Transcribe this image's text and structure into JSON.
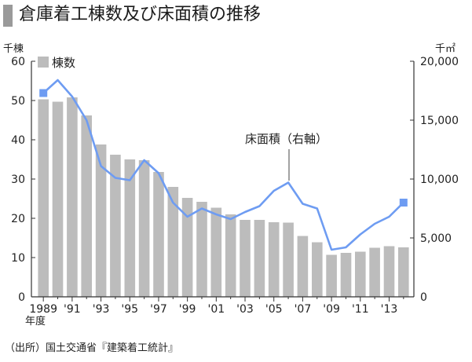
{
  "title": "倉庫着工棟数及び床面積の推移",
  "source": "（出所）国土交通省『建築着工統計』",
  "chart_data": {
    "type": "bar",
    "x_unit_label": "年度",
    "years": [
      1989,
      1990,
      1991,
      1992,
      1993,
      1994,
      1995,
      1996,
      1997,
      1998,
      1999,
      2000,
      2001,
      2002,
      2003,
      2004,
      2005,
      2006,
      2007,
      2008,
      2009,
      2010,
      2011,
      2012,
      2013,
      2014
    ],
    "x_tick_labels": [
      "1989",
      "'91",
      "'93",
      "'95",
      "'97",
      "'99",
      "'01",
      "'03",
      "'05",
      "'07",
      "'09",
      "'11",
      "'13"
    ],
    "series": [
      {
        "name": "棟数",
        "type": "bar",
        "axis": "left",
        "color": "#bcbcbc",
        "values": [
          50.3,
          49.7,
          50.8,
          46.2,
          38.8,
          36.2,
          35.0,
          34.8,
          31.8,
          28.0,
          25.2,
          24.2,
          22.7,
          21.0,
          19.6,
          19.6,
          19.0,
          18.9,
          15.5,
          13.9,
          10.7,
          11.2,
          11.5,
          12.5,
          12.9,
          12.6
        ]
      },
      {
        "name": "床面積（右軸）",
        "type": "line",
        "axis": "right",
        "color": "#6e9cf2",
        "values": [
          17300,
          18400,
          17000,
          15000,
          11100,
          10100,
          9900,
          11600,
          10500,
          8000,
          6800,
          7500,
          7000,
          6600,
          7200,
          7700,
          9000,
          9700,
          7900,
          7500,
          4000,
          4200,
          5300,
          6200,
          6800,
          8000
        ]
      }
    ],
    "left_axis": {
      "unit": "千棟",
      "min": 0,
      "max": 60,
      "ticks": [
        0,
        10,
        20,
        30,
        40,
        50,
        60
      ]
    },
    "right_axis": {
      "unit": "千㎡",
      "min": 0,
      "max": 20000,
      "ticks": [
        "0",
        "5,000",
        "10,000",
        "15,000",
        "20,000"
      ]
    },
    "legend": {
      "label": "棟数",
      "placement": "top-left"
    },
    "annotation": "床面積（右軸）",
    "grid": false
  }
}
